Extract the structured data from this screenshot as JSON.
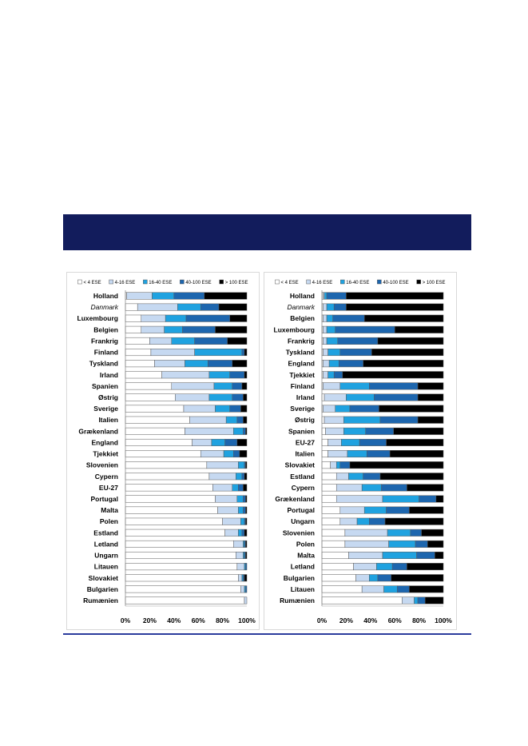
{
  "banner": {
    "color": "#121c5c"
  },
  "rule": {
    "color": "#2b3b9c"
  },
  "chart_data": [
    {
      "type": "bar",
      "orientation": "horizontal",
      "stacked": "100%",
      "categories": [
        "Holland",
        "Danmark",
        "Luxembourg",
        "Belgien",
        "Frankrig",
        "Finland",
        "Tyskland",
        "Irland",
        "Spanien",
        "Østrig",
        "Sverige",
        "Italien",
        "Grækenland",
        "England",
        "Tjekkiet",
        "Slovenien",
        "Cypern",
        "EU-27",
        "Portugal",
        "Malta",
        "Polen",
        "Estland",
        "Letland",
        "Ungarn",
        "Litauen",
        "Slovakiet",
        "Bulgarien",
        "Rumænien"
      ],
      "emphasized_category_index": 1,
      "series": [
        {
          "name": "< 4 ESE",
          "color": "#ffffff",
          "values": [
            1,
            10,
            13,
            13,
            20,
            21,
            24,
            30,
            38,
            41,
            48,
            53,
            49,
            55,
            62,
            67,
            69,
            72,
            74,
            76,
            80,
            82,
            89,
            91,
            92,
            93,
            95,
            98
          ]
        },
        {
          "name": "4-16 ESE",
          "color": "#c6d9f1",
          "values": [
            21,
            33,
            20,
            19,
            18,
            36,
            25,
            39,
            35,
            28,
            26,
            30,
            40,
            16,
            19,
            26,
            22,
            16,
            18,
            17,
            15,
            11,
            8,
            6,
            6,
            3,
            3,
            2
          ]
        },
        {
          "name": "16-40 ESE",
          "color": "#1fa2e0",
          "values": [
            18,
            19,
            17,
            15,
            19,
            39,
            19,
            17,
            15,
            19,
            12,
            9,
            8,
            11,
            8,
            5,
            5,
            5,
            5,
            4,
            3,
            3,
            1,
            1,
            1,
            1,
            1,
            0
          ]
        },
        {
          "name": "40-100 ESE",
          "color": "#1d66ae",
          "values": [
            25,
            15,
            36,
            27,
            27,
            2,
            20,
            12,
            8,
            9,
            9,
            5,
            2,
            10,
            5,
            1,
            2,
            4,
            2,
            2,
            1,
            2,
            1,
            1,
            1,
            1,
            1,
            0
          ]
        },
        {
          "name": "> 100 ESE",
          "color": "#000000",
          "values": [
            35,
            23,
            14,
            26,
            16,
            2,
            12,
            2,
            4,
            3,
            5,
            3,
            1,
            8,
            6,
            1,
            2,
            3,
            1,
            1,
            1,
            2,
            1,
            1,
            0,
            2,
            0,
            0
          ]
        }
      ],
      "xlim": [
        0,
        100
      ],
      "x_tick_values": [
        0,
        20,
        40,
        60,
        80,
        100
      ],
      "x_tick_labels": [
        "0%",
        "20%",
        "40%",
        "60%",
        "80%",
        "100%"
      ],
      "grid": false,
      "legend": "top"
    },
    {
      "type": "bar",
      "orientation": "horizontal",
      "stacked": "100%",
      "categories": [
        "Holland",
        "Danmark",
        "Belgien",
        "Luxembourg",
        "Frankrig",
        "Tyskland",
        "England",
        "Tjekkiet",
        "Finland",
        "Irland",
        "Sverige",
        "Østrig",
        "Spanien",
        "EU-27",
        "Italien",
        "Slovakiet",
        "Estland",
        "Cypern",
        "Grækenland",
        "Portugal",
        "Ungarn",
        "Slovenien",
        "Polen",
        "Malta",
        "Letland",
        "Bulgarien",
        "Litauen",
        "Rumænien"
      ],
      "emphasized_category_index": 1,
      "series": [
        {
          "name": "< 4 ESE",
          "color": "#ffffff",
          "values": [
            1,
            1,
            1,
            1,
            1,
            1,
            1,
            1,
            1,
            2,
            1,
            2,
            3,
            5,
            5,
            7,
            12,
            12,
            12,
            15,
            15,
            19,
            19,
            22,
            26,
            28,
            33,
            66
          ]
        },
        {
          "name": "4-16 ESE",
          "color": "#c6d9f1",
          "values": [
            1,
            3,
            3,
            3,
            3,
            4,
            5,
            4,
            14,
            18,
            10,
            16,
            15,
            11,
            16,
            5,
            10,
            21,
            38,
            20,
            14,
            35,
            36,
            28,
            19,
            11,
            18,
            10
          ]
        },
        {
          "name": "16-40 ESE",
          "color": "#1fa2e0",
          "values": [
            2,
            6,
            5,
            7,
            9,
            10,
            8,
            5,
            24,
            23,
            12,
            30,
            18,
            15,
            16,
            3,
            12,
            16,
            30,
            18,
            10,
            19,
            22,
            28,
            13,
            7,
            11,
            3
          ]
        },
        {
          "name": "40-100 ESE",
          "color": "#1d66ae",
          "values": [
            16,
            10,
            26,
            49,
            33,
            26,
            20,
            7,
            40,
            36,
            24,
            31,
            23,
            22,
            19,
            8,
            14,
            21,
            14,
            19,
            13,
            9,
            10,
            15,
            12,
            11,
            10,
            6
          ]
        },
        {
          "name": "> 100 ESE",
          "color": "#000000",
          "values": [
            80,
            80,
            65,
            40,
            54,
            59,
            66,
            83,
            21,
            21,
            53,
            21,
            41,
            47,
            44,
            77,
            52,
            30,
            6,
            28,
            48,
            18,
            13,
            7,
            30,
            43,
            28,
            15
          ]
        }
      ],
      "xlim": [
        0,
        100
      ],
      "x_tick_values": [
        0,
        20,
        40,
        60,
        80,
        100
      ],
      "x_tick_labels": [
        "0%",
        "20%",
        "40%",
        "60%",
        "80%",
        "100%"
      ],
      "grid": false,
      "legend": "top"
    }
  ]
}
